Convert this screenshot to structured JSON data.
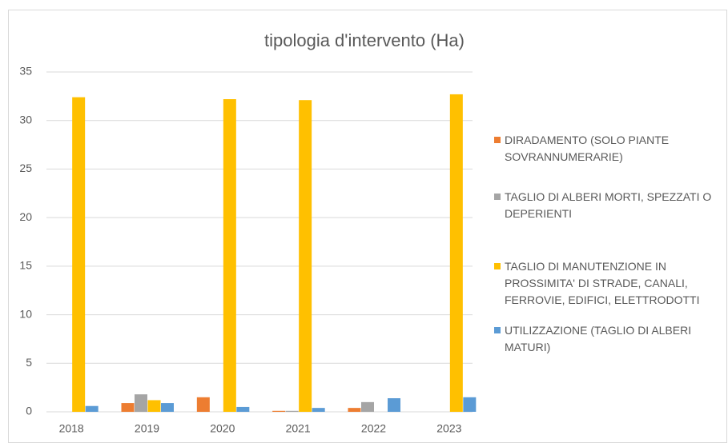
{
  "chart_data": {
    "type": "bar",
    "title": "tipologia d'intervento (Ha)",
    "categories": [
      "2018",
      "2019",
      "2020",
      "2021",
      "2022",
      "2023"
    ],
    "series": [
      {
        "name": "DIRADAMENTO (SOLO PIANTE SOVRANNUMERARIE)",
        "color": "#ed7d31",
        "values": [
          0,
          0.9,
          1.5,
          0.1,
          0.4,
          0
        ]
      },
      {
        "name": "TAGLIO DI ALBERI MORTI, SPEZZATI O DEPERIENTI",
        "color": "#a5a5a5",
        "values": [
          0,
          1.8,
          0,
          0.1,
          1.0,
          0
        ]
      },
      {
        "name": "TAGLIO DI MANUTENZIONE IN PROSSIMITA' DI STRADE, CANALI, FERROVIE, EDIFICI, ELETTRODOTTI",
        "color": "#ffc000",
        "values": [
          32.4,
          1.2,
          32.2,
          32.1,
          0,
          32.7
        ]
      },
      {
        "name": "UTILIZZAZIONE (TAGLIO DI ALBERI MATURI)",
        "color": "#5b9bd5",
        "values": [
          0.6,
          0.9,
          0.5,
          0.4,
          1.4,
          1.5
        ]
      }
    ],
    "ylim": [
      0,
      35
    ],
    "yticks": [
      0,
      5,
      10,
      15,
      20,
      25,
      30,
      35
    ],
    "grid": true,
    "legend": "right"
  }
}
